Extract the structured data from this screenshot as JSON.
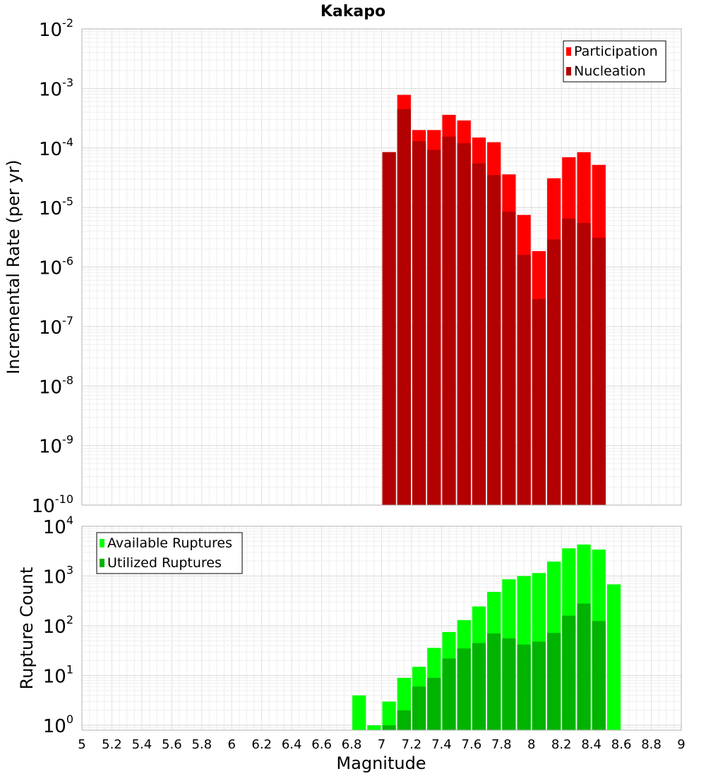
{
  "chart_data": {
    "title": "Kakapo",
    "xlabel": "Magnitude",
    "xlim": [
      5,
      9
    ],
    "xticks": [
      "5",
      "5.2",
      "5.4",
      "5.6",
      "5.8",
      "6",
      "6.2",
      "6.4",
      "6.6",
      "6.8",
      "7",
      "7.2",
      "7.4",
      "7.6",
      "7.8",
      "8",
      "8.2",
      "8.4",
      "8.6",
      "8.8",
      "9"
    ],
    "bin_width": 0.1,
    "grid": true,
    "panels": [
      {
        "type": "bar",
        "scale": "log",
        "ylabel": "Incremental Rate (per yr)",
        "ylim": [
          1e-10,
          0.01
        ],
        "yticks": [
          {
            "value": 0.01,
            "base": "10",
            "exp": "-2"
          },
          {
            "value": 0.001,
            "base": "10",
            "exp": "-3"
          },
          {
            "value": 0.0001,
            "base": "10",
            "exp": "-4"
          },
          {
            "value": 1e-05,
            "base": "10",
            "exp": "-5"
          },
          {
            "value": 1e-06,
            "base": "10",
            "exp": "-6"
          },
          {
            "value": 1e-07,
            "base": "10",
            "exp": "-7"
          },
          {
            "value": 1e-08,
            "base": "10",
            "exp": "-8"
          },
          {
            "value": 1e-09,
            "base": "10",
            "exp": "-9"
          },
          {
            "value": 1e-10,
            "base": "10",
            "exp": "-10"
          }
        ],
        "legend_position": "top-right",
        "x": [
          7.05,
          7.15,
          7.25,
          7.35,
          7.45,
          7.55,
          7.65,
          7.75,
          7.85,
          7.95,
          8.05,
          8.15,
          8.25,
          8.35,
          8.45
        ],
        "series": [
          {
            "name": "Participation",
            "color": "#ff0000",
            "values": [
              8.5e-05,
              0.00078,
              0.0002,
              0.0002,
              0.00036,
              0.00029,
              0.00015,
              0.000125,
              3.6e-05,
              7.5e-06,
              1.85e-06,
              3.1e-05,
              7e-05,
              8.5e-05,
              5.2e-05
            ]
          },
          {
            "name": "Nucleation",
            "color": "#b30000",
            "values": [
              8.5e-05,
              0.00045,
              0.00013,
              9.3e-05,
              0.000155,
              0.00012,
              5.5e-05,
              3.5e-05,
              8.5e-06,
              1.6e-06,
              2.9e-07,
              2.9e-06,
              6.5e-06,
              5.5e-06,
              3.1e-06
            ]
          }
        ]
      },
      {
        "type": "bar",
        "scale": "log",
        "ylabel": "Rupture Count",
        "ylim": [
          0.8,
          10000
        ],
        "yticks": [
          {
            "value": 1,
            "base": "10",
            "exp": "0"
          },
          {
            "value": 10,
            "base": "10",
            "exp": "1"
          },
          {
            "value": 100,
            "base": "10",
            "exp": "2"
          },
          {
            "value": 1000,
            "base": "10",
            "exp": "3"
          },
          {
            "value": 10000,
            "base": "10",
            "exp": "4"
          }
        ],
        "legend_position": "top-left",
        "x": [
          6.85,
          6.95,
          7.05,
          7.15,
          7.25,
          7.35,
          7.45,
          7.55,
          7.65,
          7.75,
          7.85,
          7.95,
          8.05,
          8.15,
          8.25,
          8.35,
          8.45,
          8.55
        ],
        "series": [
          {
            "name": "Available Ruptures",
            "color": "#00ff00",
            "values": [
              4,
              1,
              3,
              9,
              15,
              36,
              75,
              130,
              245,
              480,
              860,
              1000,
              1150,
              1950,
              3600,
              4300,
              3400,
              680
            ]
          },
          {
            "name": "Utilized Ruptures",
            "color": "#00b300",
            "values": [
              0,
              0,
              1,
              2,
              6,
              9,
              22,
              35,
              45,
              70,
              56,
              42,
              48,
              72,
              160,
              280,
              125,
              0
            ]
          }
        ]
      }
    ]
  }
}
